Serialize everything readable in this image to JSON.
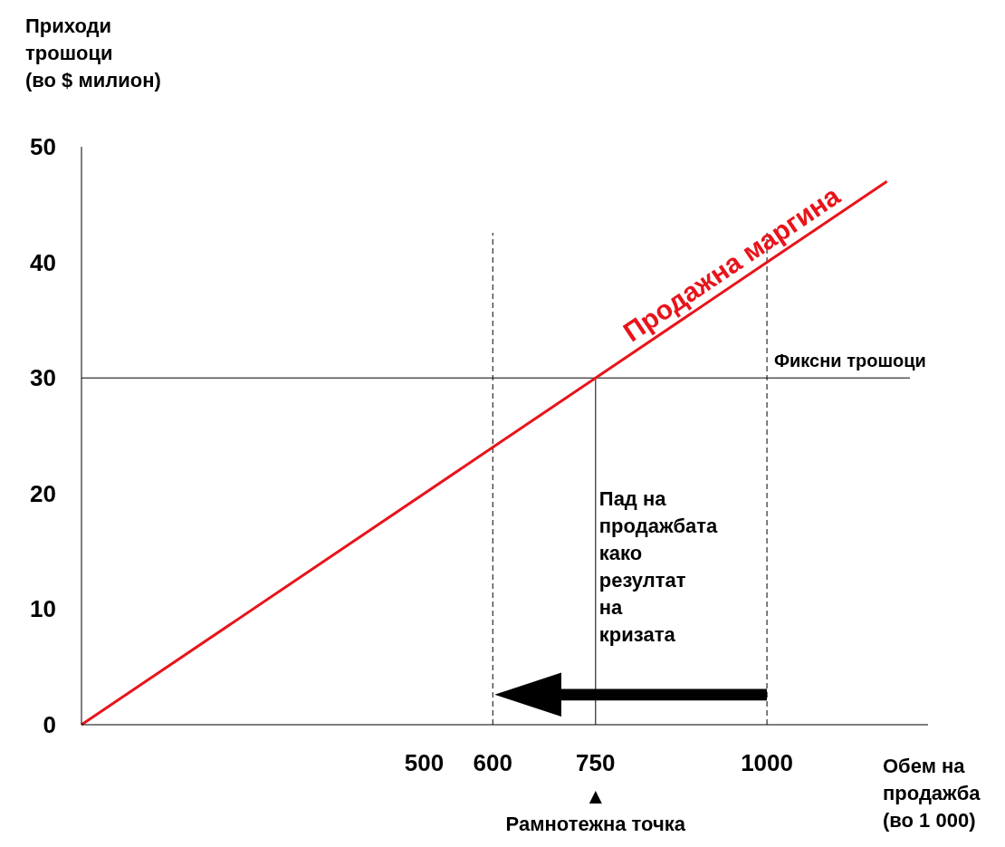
{
  "chart_data": {
    "type": "line",
    "xlabel": "Обем на\nпродажба\n(во 1 000)",
    "ylabel": "Приходи\nтрошоци\n(во $ милион)",
    "x": [
      0,
      600,
      750,
      1000,
      1175
    ],
    "series": [
      {
        "name": "Продажна маргина",
        "color": "#e8141b",
        "values": [
          0,
          24,
          30,
          40,
          47
        ]
      }
    ],
    "xlim": [
      0,
      1235
    ],
    "xticks": [
      500,
      600,
      750,
      1000
    ],
    "ylim": [
      0,
      50
    ],
    "yticks": [
      0,
      10,
      20,
      30,
      40,
      50
    ],
    "grid": false,
    "marker": "none",
    "line_style": "solid",
    "ref_lines": [
      {
        "axis": "x",
        "value": 600,
        "line_style": "dashed",
        "color": "#000000"
      },
      {
        "axis": "x",
        "value": 1000,
        "line_style": "dashed",
        "color": "#000000"
      },
      {
        "axis": "x",
        "value": 750,
        "line_style": "solid",
        "color": "#000000"
      },
      {
        "axis": "y",
        "value": 30,
        "label": "Фиксни трошоци",
        "line_style": "solid",
        "color": "#000000"
      }
    ],
    "annotations": [
      {
        "text": "Пад на\nпродажбата\nкако\nрезултат\nна\nкризата",
        "x": 750,
        "y": 19
      },
      "Рамнотежна точка"
    ]
  }
}
